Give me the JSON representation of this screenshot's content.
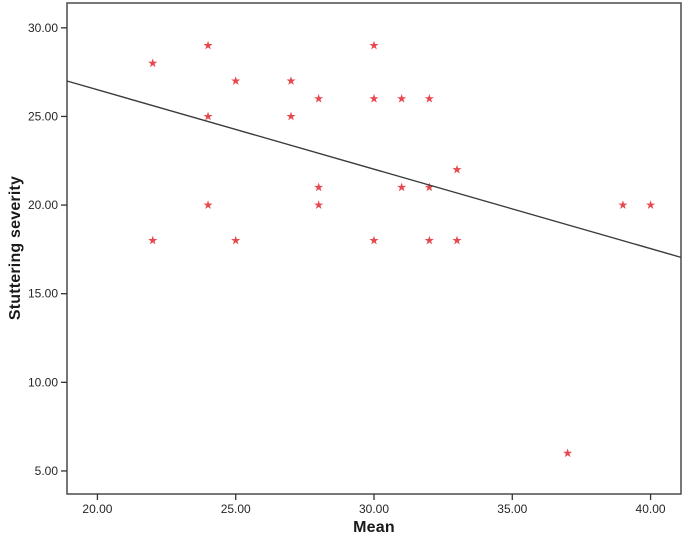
{
  "figure": {
    "background": "#ffffff",
    "frame_color": "#4a4a4a",
    "tick_color": "#333333",
    "text_color": "#262626"
  },
  "chart_data": {
    "type": "scatter",
    "title": "",
    "xlabel": "Mean",
    "ylabel": "Stuttering severity",
    "xlim": [
      18.9,
      41.1
    ],
    "ylim": [
      3.7,
      31.4
    ],
    "x_tick_values": [
      20,
      25,
      30,
      35,
      40
    ],
    "x_tick_labels": [
      "20.00",
      "25.00",
      "30.00",
      "35.00",
      "40.00"
    ],
    "y_tick_values": [
      5,
      10,
      15,
      20,
      25,
      30
    ],
    "y_tick_labels": [
      "5.00",
      "10.00",
      "15.00",
      "20.00",
      "25.00",
      "30.00"
    ],
    "grid": false,
    "legend": null,
    "marker": {
      "shape": "star",
      "color": "#e8474d",
      "outer_radius": 4.8,
      "inner_radius": 1.85
    },
    "points": [
      [
        22,
        18
      ],
      [
        22,
        28
      ],
      [
        24,
        20
      ],
      [
        24,
        25
      ],
      [
        24,
        29
      ],
      [
        25,
        18
      ],
      [
        25,
        27
      ],
      [
        27,
        25
      ],
      [
        27,
        27
      ],
      [
        28,
        20
      ],
      [
        28,
        21
      ],
      [
        28,
        26
      ],
      [
        30,
        18
      ],
      [
        30,
        26
      ],
      [
        30,
        29
      ],
      [
        31,
        21
      ],
      [
        31,
        26
      ],
      [
        32,
        18
      ],
      [
        32,
        21
      ],
      [
        32,
        26
      ],
      [
        33,
        18
      ],
      [
        33,
        22
      ],
      [
        37,
        6
      ],
      [
        39,
        20
      ],
      [
        40,
        20
      ]
    ],
    "trend_line": {
      "x1": 18.9,
      "y1": 27.0,
      "x2": 41.1,
      "y2": 17.05,
      "color": "#3b3b3b"
    }
  }
}
